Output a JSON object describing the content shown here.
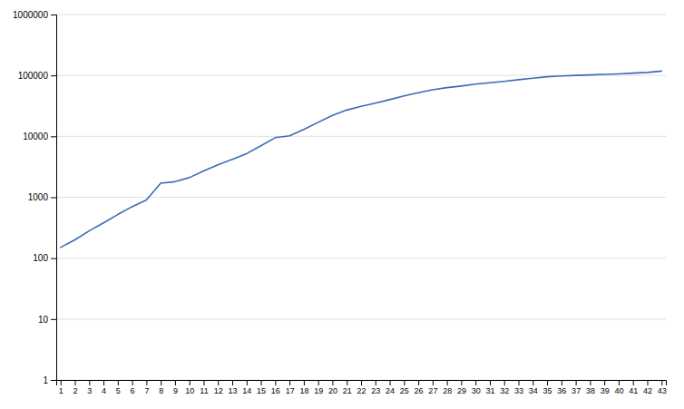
{
  "chart_data": {
    "type": "line",
    "x": [
      1,
      2,
      3,
      4,
      5,
      6,
      7,
      8,
      9,
      10,
      11,
      12,
      13,
      14,
      15,
      16,
      17,
      18,
      19,
      20,
      21,
      22,
      23,
      24,
      25,
      26,
      27,
      28,
      29,
      30,
      31,
      32,
      33,
      34,
      35,
      36,
      37,
      38,
      39,
      40,
      41,
      42,
      43
    ],
    "values": [
      150,
      200,
      280,
      380,
      520,
      700,
      900,
      1700,
      1800,
      2100,
      2700,
      3400,
      4200,
      5200,
      7000,
      9500,
      10200,
      13000,
      17000,
      22000,
      27000,
      31000,
      35000,
      40000,
      46000,
      52000,
      58000,
      63000,
      67000,
      72000,
      76000,
      80000,
      85000,
      90000,
      95000,
      98000,
      100000,
      102000,
      104000,
      106000,
      109000,
      112000,
      118000
    ],
    "color": "#3c6cb5",
    "log": "y",
    "xlim": [
      0.7,
      43.3
    ],
    "ylim": [
      1,
      1000000
    ],
    "xticks": [
      1,
      2,
      3,
      4,
      5,
      6,
      7,
      8,
      9,
      10,
      11,
      12,
      13,
      14,
      15,
      16,
      17,
      18,
      19,
      20,
      21,
      22,
      23,
      24,
      25,
      26,
      27,
      28,
      29,
      30,
      31,
      32,
      33,
      34,
      35,
      36,
      37,
      38,
      39,
      40,
      41,
      42,
      43
    ],
    "yticks": [
      1,
      10,
      100,
      1000,
      10000,
      100000,
      1000000
    ],
    "grid": "y"
  }
}
